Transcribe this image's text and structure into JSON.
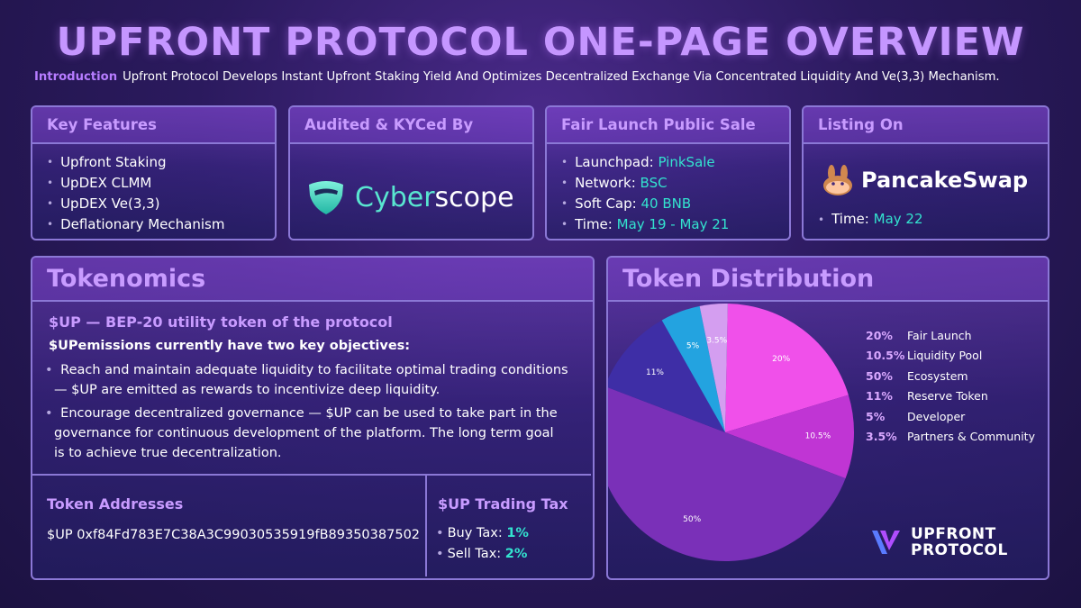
{
  "title": "UPFRONT PROTOCOL ONE-PAGE OVERVIEW",
  "intro": {
    "label": "Introduction",
    "text": "Upfront Protocol Develops Instant Upfront Staking Yield And Optimizes Decentralized Exchange Via Concentrated Liquidity And Ve(3,3) Mechanism."
  },
  "key_features": {
    "title": "Key Features",
    "items": [
      "Upfront Staking",
      "UpDEX CLMM",
      "UpDEX Ve(3,3)",
      "Deflationary Mechanism"
    ]
  },
  "audited": {
    "title": "Audited & KYCed By",
    "logo_part1": "Cyber",
    "logo_part2": "scope",
    "logo_icon": "shield-icon"
  },
  "fair_launch": {
    "title": "Fair Launch Public Sale",
    "items": [
      {
        "label": "Launchpad:",
        "value": "PinkSale"
      },
      {
        "label": "Network:",
        "value": "BSC"
      },
      {
        "label": "Soft Cap:",
        "value": "40 BNB"
      },
      {
        "label": "Time:",
        "value": "May 19 - May 21"
      }
    ]
  },
  "listing": {
    "title": "Listing On",
    "exchange": "PancakeSwap",
    "logo_icon": "bunny-icon",
    "time_label": "Time:",
    "time_value": "May 22"
  },
  "tokenomics": {
    "title": "Tokenomics",
    "subtitle": "$UP — BEP-20 utility token of the protocol",
    "objectives_heading": "$UPemissions currently have two key objectives:",
    "points": [
      {
        "line1": "Reach and maintain adequate liquidity to facilitate optimal trading conditions",
        "line2": "— $UP are emitted as rewards to incentivize deep liquidity."
      },
      {
        "line1": "Encourage decentralized governance — $UP can be used to take part in the",
        "line2": "governance for continuous development of the platform. The long term goal",
        "line3": "is to achieve true decentralization."
      }
    ],
    "addresses_title": "Token Addresses",
    "address": "$UP 0xf84Fd783E7C38A3C99030535919fB89350387502",
    "tax_title": "$UP Trading Tax",
    "buy_label": "Buy Tax:",
    "buy_value": "1%",
    "sell_label": "Sell Tax:",
    "sell_value": "2%"
  },
  "distribution_title": "Token Distribution",
  "brand": {
    "line1": "UPFRONT",
    "line2": "PROTOCOL"
  },
  "colors": {
    "accent": "#c89bff",
    "highlight": "#33e3cf",
    "border": "#8b78d6"
  },
  "chart_data": {
    "type": "pie",
    "title": "Token Distribution",
    "slices": [
      {
        "label": "Fair Launch",
        "value": 20,
        "display": "20%",
        "color": "#f050ea"
      },
      {
        "label": "Liquidity Pool",
        "value": 10.5,
        "display": "10.5%",
        "color": "#c035d4"
      },
      {
        "label": "Ecosystem",
        "value": 50,
        "display": "50%",
        "color": "#7a30b8"
      },
      {
        "label": "Reserve Token",
        "value": 11,
        "display": "11%",
        "color": "#3e2ea6"
      },
      {
        "label": "Developer",
        "value": 5,
        "display": "5%",
        "color": "#23a3e0"
      },
      {
        "label": "Partners & Community",
        "value": 3.5,
        "display": "3.5%",
        "color": "#d49ef0"
      }
    ],
    "legend_position": "right"
  }
}
